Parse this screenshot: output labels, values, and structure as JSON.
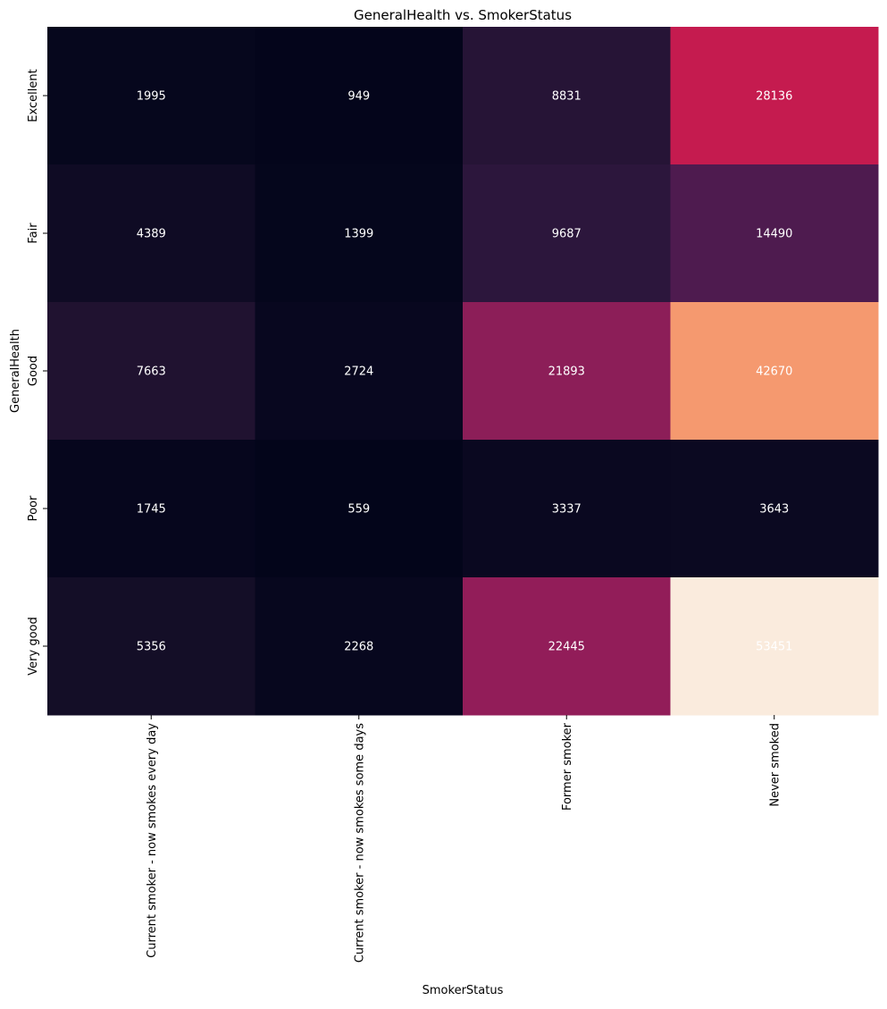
{
  "chart_data": {
    "type": "heatmap",
    "title": "GeneralHealth vs. SmokerStatus",
    "xlabel": "SmokerStatus",
    "ylabel": "GeneralHealth",
    "x_categories": [
      "Current smoker - now smokes every day",
      "Current smoker - now smokes some days",
      "Former smoker",
      "Never smoked"
    ],
    "y_categories": [
      "Excellent",
      "Fair",
      "Good",
      "Poor",
      "Very good"
    ],
    "values": [
      [
        1995,
        949,
        8831,
        28136
      ],
      [
        4389,
        1399,
        9687,
        14490
      ],
      [
        7663,
        2724,
        21893,
        42670
      ],
      [
        1745,
        559,
        3337,
        3643
      ],
      [
        5356,
        2268,
        22445,
        53451
      ]
    ],
    "colormap": "rocket",
    "colorbar": false,
    "annotations": true,
    "annotation_color": "#ffffff",
    "grid": false
  }
}
